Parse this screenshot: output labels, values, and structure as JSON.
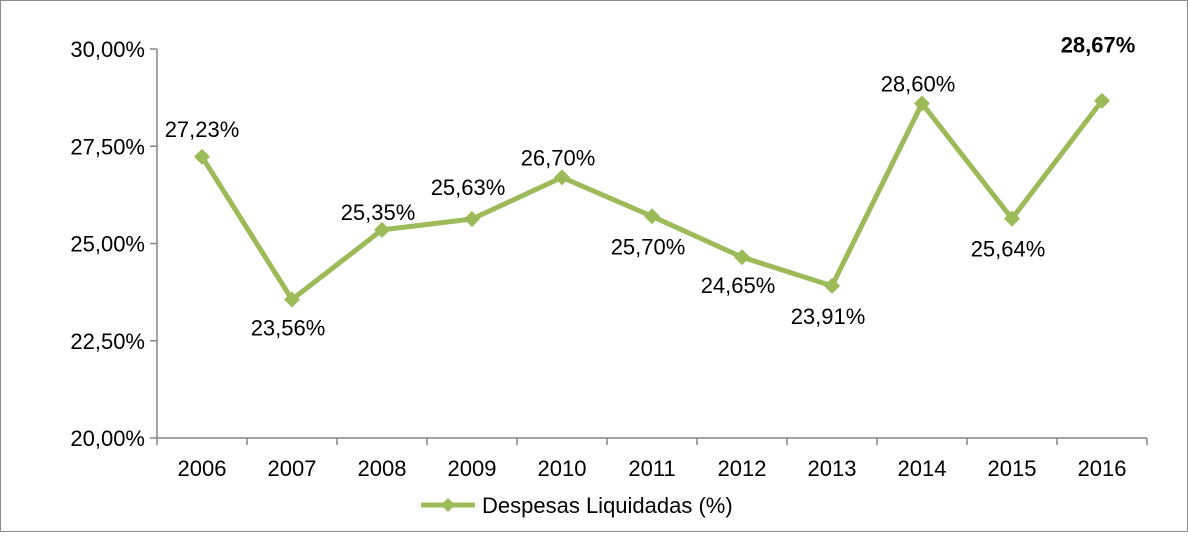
{
  "chart_data": {
    "type": "line",
    "title": "",
    "xlabel": "",
    "ylabel": "",
    "categories": [
      "2006",
      "2007",
      "2008",
      "2009",
      "2010",
      "2011",
      "2012",
      "2013",
      "2014",
      "2015",
      "2016"
    ],
    "series": [
      {
        "name": "Despesas Liquidadas (%)",
        "color": "#9bbb59",
        "marker": "diamond",
        "values": [
          27.23,
          23.56,
          25.35,
          25.63,
          26.7,
          25.7,
          24.65,
          23.91,
          28.6,
          25.64,
          28.67
        ],
        "data_labels": [
          "27,23%",
          "23,56%",
          "25,35%",
          "25,63%",
          "26,70%",
          "25,70%",
          "24,65%",
          "23,91%",
          "28,60%",
          "25,64%",
          "28,67%"
        ],
        "bold_label_index": 10
      }
    ],
    "ylim": [
      20,
      30
    ],
    "yticks": [
      20,
      22.5,
      25,
      27.5,
      30
    ],
    "ytick_labels": [
      "20,00%",
      "22,50%",
      "25,00%",
      "27,50%",
      "30,00%"
    ],
    "grid": false,
    "legend": {
      "position": "bottom",
      "label": "Despesas Liquidadas (%)"
    }
  }
}
